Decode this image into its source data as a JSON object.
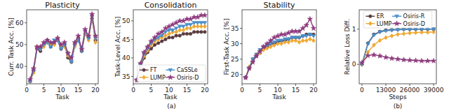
{
  "chart_data": [
    {
      "type": "line",
      "title": "Plasticity",
      "x_label": "Task",
      "y_label": "Curr. Task Acc. [%]",
      "x": [
        1,
        2,
        3,
        4,
        5,
        6,
        7,
        8,
        9,
        10,
        11,
        12,
        13,
        14,
        15,
        16,
        17,
        18,
        19,
        20
      ],
      "xlim": [
        0,
        20.8
      ],
      "xticks": [
        0,
        5,
        10,
        15,
        20
      ],
      "ylim": [
        32,
        66
      ],
      "yticks": [
        40,
        50,
        60
      ],
      "grid": false,
      "series": [
        {
          "name": "FT",
          "color": "#5b3b3f",
          "marker": "circle",
          "line_style": "solid",
          "values": [
            33,
            38,
            48,
            47,
            50,
            52,
            49,
            51,
            52,
            48,
            50,
            44,
            42,
            50,
            53,
            47,
            55,
            53,
            62,
            52
          ]
        },
        {
          "name": "LUMP",
          "color": "#f0a830",
          "marker": "diamond",
          "line_style": "solid",
          "values": [
            33,
            37,
            49,
            48,
            49,
            51,
            50,
            50,
            53,
            49,
            49,
            45,
            43,
            49,
            52,
            48,
            55,
            52,
            63,
            51
          ]
        },
        {
          "name": "CaSSLe",
          "color": "#4a8fc9",
          "marker": "triangle_down",
          "line_style": "solid",
          "values": [
            33,
            38,
            48,
            48,
            50,
            51,
            49,
            52,
            52,
            48,
            50,
            46,
            42,
            50,
            52,
            47,
            56,
            53,
            63,
            53
          ]
        },
        {
          "name": "Osiris-D",
          "color": "#8e3b7e",
          "marker": "star",
          "line_style": "solid",
          "values": [
            34,
            39,
            49,
            49,
            51,
            52,
            51,
            51,
            53,
            50,
            51,
            46,
            44,
            51,
            54,
            48,
            57,
            54,
            64,
            54
          ]
        }
      ]
    },
    {
      "type": "line",
      "title": "Consolidation",
      "x_label": "Task",
      "y_label": "Task-Level Acc. [%]",
      "x": [
        1,
        2,
        3,
        4,
        5,
        6,
        7,
        8,
        9,
        10,
        11,
        12,
        13,
        14,
        15,
        16,
        17,
        18,
        19,
        20
      ],
      "xlim": [
        0,
        20.8
      ],
      "xticks": [
        0,
        5,
        10,
        15,
        20
      ],
      "ylim": [
        33,
        53
      ],
      "yticks": [
        35,
        40,
        45,
        50
      ],
      "grid": false,
      "legend": "lower right",
      "series": [
        {
          "name": "FT",
          "color": "#5b3b3f",
          "marker": "circle",
          "line_style": "solid",
          "values": [
            34,
            37.5,
            40,
            41.5,
            42.5,
            43.5,
            44,
            44.5,
            45,
            45.5,
            45.5,
            46,
            46,
            46.5,
            46.5,
            46.5,
            47,
            47,
            47,
            47
          ]
        },
        {
          "name": "LUMP",
          "color": "#f0a830",
          "marker": "diamond",
          "line_style": "solid",
          "values": [
            34,
            38,
            40.5,
            42,
            43.5,
            44.5,
            45,
            45.5,
            46,
            46.5,
            47,
            47,
            47.5,
            47.5,
            48,
            48,
            48.5,
            48.5,
            48.5,
            48.5
          ]
        },
        {
          "name": "CaSSLe",
          "color": "#4a8fc9",
          "marker": "triangle_down",
          "line_style": "solid",
          "values": [
            34,
            38,
            41,
            42.5,
            44,
            45,
            45.5,
            46,
            47,
            47.5,
            47.5,
            48,
            48.5,
            48.5,
            49,
            49,
            49.5,
            49.5,
            49.5,
            49.5
          ]
        },
        {
          "name": "Osiris-D",
          "color": "#8e3b7e",
          "marker": "star",
          "line_style": "solid",
          "values": [
            34,
            38.5,
            41.5,
            43,
            44.5,
            45.5,
            46.5,
            47,
            48,
            48.5,
            49,
            49.5,
            50,
            50,
            50.5,
            50.5,
            51,
            51,
            51.5,
            51.5
          ]
        }
      ]
    },
    {
      "type": "line",
      "title": "Stability",
      "x_label": "Task",
      "y_label": "First-Task Acc. [%]",
      "x": [
        1,
        2,
        3,
        4,
        5,
        6,
        7,
        8,
        9,
        10,
        11,
        12,
        13,
        14,
        15,
        16,
        17,
        18,
        19,
        20
      ],
      "xlim": [
        0,
        20.8
      ],
      "xticks": [
        0,
        5,
        10,
        15,
        20
      ],
      "ylim": [
        17,
        41
      ],
      "yticks": [
        20,
        25,
        30,
        35
      ],
      "grid": false,
      "series": [
        {
          "name": "FT",
          "color": "#5b3b3f",
          "marker": "circle",
          "line_style": "solid",
          "values": [
            19,
            22,
            24.5,
            26,
            27,
            28.5,
            29,
            30,
            30,
            30.5,
            31,
            31,
            31.5,
            32,
            32,
            32,
            32.5,
            33,
            33,
            33
          ]
        },
        {
          "name": "LUMP",
          "color": "#f0a830",
          "marker": "diamond",
          "line_style": "solid",
          "values": [
            19,
            22.5,
            25,
            26.5,
            27,
            28,
            28.5,
            29,
            29.5,
            30,
            30,
            30.5,
            30.5,
            31,
            31,
            30.5,
            31,
            31,
            31.5,
            31
          ]
        },
        {
          "name": "CaSSLe",
          "color": "#4a8fc9",
          "marker": "triangle_down",
          "line_style": "solid",
          "values": [
            19,
            22,
            25,
            26.5,
            28,
            29,
            29.5,
            30,
            30.5,
            31,
            31,
            31.5,
            31.5,
            32,
            32,
            32,
            32.5,
            32.5,
            33,
            32.5
          ]
        },
        {
          "name": "Osiris-D",
          "color": "#8e3b7e",
          "marker": "star",
          "line_style": "solid",
          "values": [
            19,
            22,
            24,
            26,
            27.5,
            29,
            30,
            31,
            32,
            32.5,
            33,
            33,
            33.5,
            34,
            34,
            34,
            35,
            36,
            38,
            35
          ]
        }
      ]
    },
    {
      "type": "line",
      "x_label": "Steps",
      "y_label": "Relative Loss Diff.",
      "x": [
        0,
        3250,
        6500,
        9750,
        13000,
        16250,
        19500,
        22750,
        26000,
        29250,
        32500,
        35750,
        39000
      ],
      "xlim": [
        -1500,
        40500
      ],
      "xticks": [
        0,
        13000,
        26000,
        39000
      ],
      "ylim": [
        -0.55,
        1.55
      ],
      "yticks": [
        0,
        1
      ],
      "grid": false,
      "legend": "upper center",
      "series": [
        {
          "name": "ER",
          "color": "#5b3b3f",
          "marker": "circle",
          "line_style": "solid",
          "values": [
            0,
            0.6,
            0.85,
            0.93,
            0.97,
            0.98,
            0.99,
            1,
            1,
            1,
            1,
            1,
            1
          ]
        },
        {
          "name": "LUMP",
          "color": "#f0a830",
          "marker": "diamond",
          "line_style": "solid",
          "values": [
            0,
            0.35,
            0.55,
            0.68,
            0.76,
            0.81,
            0.85,
            0.87,
            0.89,
            0.9,
            0.91,
            0.91,
            0.92
          ]
        },
        {
          "name": "Osiris-R",
          "color": "#4a8fc9",
          "marker": "triangle_down",
          "line_style": "solid",
          "values": [
            0,
            0.58,
            0.83,
            0.92,
            0.95,
            0.97,
            0.98,
            0.99,
            0.99,
            1,
            1,
            1,
            1
          ]
        },
        {
          "name": "Osiris-D",
          "color": "#8e3b7e",
          "marker": "star",
          "line_style": "solid",
          "values": [
            0.05,
            0.25,
            0.27,
            0.24,
            0.2,
            0.17,
            0.15,
            0.13,
            0.12,
            0.11,
            0.1,
            0.1,
            0.1
          ]
        }
      ]
    }
  ],
  "panel_labels": [
    "(a)",
    "(b)"
  ]
}
